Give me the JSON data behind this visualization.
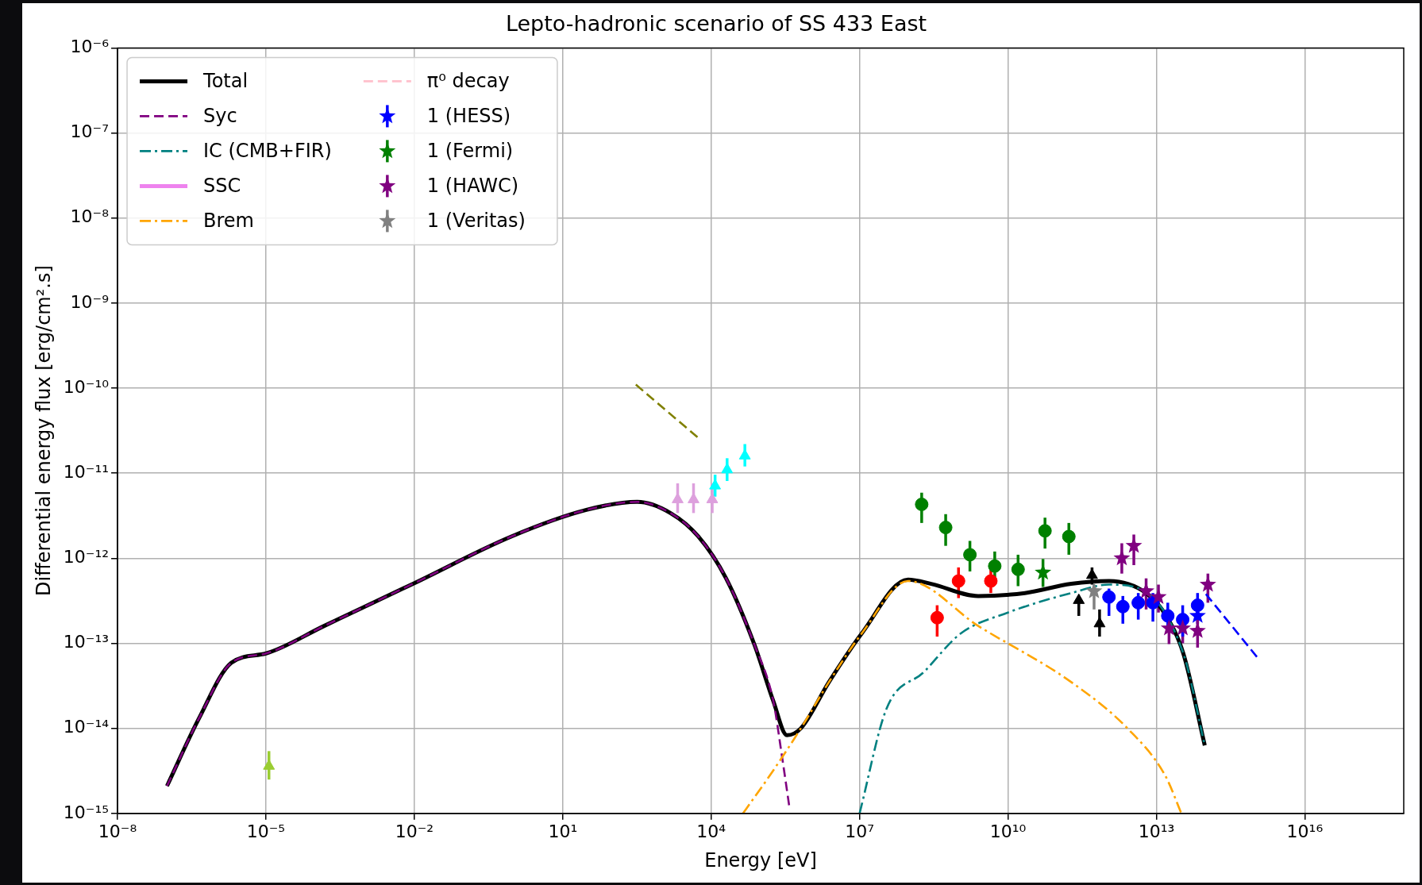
{
  "chart_data": {
    "type": "line",
    "title": "Lepto-hadronic scenario of SS 433 East",
    "xlabel": "Energy [eV]",
    "ylabel": "Differential energy flux [erg/cm².s]",
    "log": "xy",
    "grid": true,
    "legend": "top left",
    "xlim": [
      1e-08,
      1e+18
    ],
    "xticks": [
      {
        "value": 1e-08,
        "label": "10⁻⁸"
      },
      {
        "value": 1e-05,
        "label": "10⁻⁵"
      },
      {
        "value": 0.01,
        "label": "10⁻²"
      },
      {
        "value": 10,
        "label": "10¹"
      },
      {
        "value": 10000.0,
        "label": "10⁴"
      },
      {
        "value": 10000000.0,
        "label": "10⁷"
      },
      {
        "value": 10000000000.0,
        "label": "10¹⁰"
      },
      {
        "value": 10000000000000.0,
        "label": "10¹³"
      },
      {
        "value": 1e+16,
        "label": "10¹⁶"
      }
    ],
    "ylim": [
      1e-15,
      1e-06
    ],
    "yticks": [
      {
        "value": 1e-15,
        "label": "10⁻¹⁵"
      },
      {
        "value": 1e-14,
        "label": "10⁻¹⁴"
      },
      {
        "value": 1e-13,
        "label": "10⁻¹³"
      },
      {
        "value": 1e-12,
        "label": "10⁻¹²"
      },
      {
        "value": 1e-11,
        "label": "10⁻¹¹"
      },
      {
        "value": 1e-10,
        "label": "10⁻¹⁰"
      },
      {
        "value": 1e-09,
        "label": "10⁻⁹"
      },
      {
        "value": 1e-08,
        "label": "10⁻⁸"
      },
      {
        "value": 1e-07,
        "label": "10⁻⁷"
      },
      {
        "value": 1e-06,
        "label": "10⁻⁶"
      }
    ],
    "series": [
      {
        "name": "Total",
        "line_style": "solid",
        "color": "#000000",
        "x": [
          1e-07,
          4.4e-07,
          2e-06,
          1e-05,
          0.00015,
          0.01,
          0.91,
          30,
          320,
          1500,
          5500,
          20000.0,
          74000.0,
          180000.0,
          340000.0,
          650000.0,
          2400000.0,
          11000000.0,
          95000000.0,
          280000000.0,
          2500000000.0,
          22000000000.0,
          190000000000.0,
          1100000000000.0,
          6200000000000.0,
          15000000000000.0,
          35000000000000.0,
          95000000000000.0
        ],
        "values": [
          2.1e-15,
          1.3e-14,
          5.9e-14,
          7.6e-14,
          1.6e-13,
          5.1e-13,
          1.8e-12,
          3.7e-12,
          4.6e-12,
          3.4e-12,
          1.8e-12,
          5.8e-13,
          9.8e-14,
          2.1e-14,
          8.3e-15,
          1e-14,
          3.5e-14,
          1.3e-13,
          5.6e-13,
          5e-13,
          3.6e-13,
          3.9e-13,
          5e-13,
          5.4e-13,
          3.9e-13,
          2.2e-13,
          7.6e-14,
          6.3e-15
        ]
      },
      {
        "name": "Syc",
        "line_style": "dashed",
        "color": "#800080",
        "x": [
          1e-07,
          4.4e-07,
          2e-06,
          1e-05,
          0.00015,
          0.01,
          0.91,
          30,
          320,
          1500,
          5500,
          20000.0,
          74000.0,
          180000.0,
          270000.0,
          380000.0
        ],
        "values": [
          2.1e-15,
          1.3e-14,
          5.9e-14,
          7.6e-14,
          1.6e-13,
          5.1e-13,
          1.8e-12,
          3.7e-12,
          4.6e-12,
          3.4e-12,
          1.8e-12,
          5.8e-13,
          9.8e-14,
          2.1e-14,
          4.7e-15,
          1.2e-15
        ]
      },
      {
        "name": "IC (CMB+FIR)",
        "line_style": "dashdot",
        "color": "#008080",
        "x": [
          10000000.0,
          35000000.0,
          200000000.0,
          1100000000.0,
          10000000000.0,
          190000000000.0,
          1100000000000.0,
          4500000000000.0,
          35000000000000.0,
          95000000000000.0
        ],
        "values": [
          1e-15,
          1.7e-14,
          4.6e-14,
          1.3e-13,
          2.3e-13,
          3.9e-13,
          4.9e-13,
          4.4e-13,
          7.6e-14,
          6.3e-15
        ]
      },
      {
        "name": "SSC",
        "line_style": "solid",
        "color": "#ee82ee"
      },
      {
        "name": "Brem",
        "line_style": "dashdot",
        "color": "#ffa500",
        "x": [
          44000.0,
          180000.0,
          650000.0,
          2400000.0,
          11000000.0,
          95000000.0,
          2500000000.0,
          190000000000.0,
          2600000000000.0,
          15000000000000.0,
          32000000000000.0
        ],
        "values": [
          1e-15,
          3.2e-15,
          1e-14,
          3.5e-14,
          1.3e-13,
          5.4e-13,
          1.6e-13,
          3.5e-14,
          1e-14,
          2.8e-15,
          1e-15
        ]
      },
      {
        "name": "π⁰ decay",
        "line_style": "dashed",
        "color": "#ffc0cb"
      },
      {
        "name": "1 (HESS)",
        "type": "scatter",
        "marker": "star",
        "color": "#0000ff",
        "x": [
          68000000000000.0
        ],
        "values": [
          2.1e-13
        ],
        "errors": [
          [
            1.7e-13,
            2.6e-13
          ]
        ]
      },
      {
        "name": "1 (Fermi)",
        "type": "scatter",
        "marker": "star",
        "color": "#008000",
        "x": [
          51000000000.0
        ],
        "values": [
          6.8e-13
        ],
        "errors": [
          [
            4.6e-13,
            9.8e-13
          ]
        ]
      },
      {
        "name": "1 (HAWC)",
        "type": "scatter",
        "marker": "star",
        "color": "#800080",
        "x": [
          2000000000000.0,
          3500000000000.0,
          6200000000000.0,
          11000000000000.0,
          18000000000000.0,
          34000000000000.0,
          68000000000000.0,
          110000000000000.0
        ],
        "values": [
          1e-12,
          1.4e-12,
          4.1e-13,
          3.5e-13,
          1.5e-13,
          1.5e-13,
          1.4e-13,
          4.9e-13
        ],
        "errors": [
          [
            6.6e-13,
            1.5e-12
          ],
          [
            8.3e-13,
            1.9e-12
          ],
          [
            2.5e-13,
            5.8e-13
          ],
          [
            2.3e-13,
            4.9e-13
          ],
          [
            9.8e-14,
            2.5e-13
          ],
          [
            1e-13,
            2.1e-13
          ],
          [
            8.9e-14,
            1.9e-13
          ],
          [
            3e-13,
            6.6e-13
          ]
        ]
      },
      {
        "name": "1 (Veritas)",
        "type": "scatter",
        "marker": "star",
        "color": "#808080",
        "x": [
          550000000000.0
        ],
        "values": [
          4.1e-13
        ],
        "errors": [
          [
            2.5e-13,
            4.9e-13
          ]
        ]
      },
      {
        "line_style": "dashed",
        "color": "#808000",
        "x": [
          300,
          5500
        ],
        "values": [
          1.1e-10,
          2.6e-11
        ]
      },
      {
        "line_style": "dashed",
        "color": "#0000ff",
        "x": [
          100000000000000.0,
          1150000000000000.0
        ],
        "values": [
          3.8e-13,
          6.6e-14
        ]
      },
      {
        "type": "scatter",
        "marker": "triangle",
        "color": "#9acd32",
        "x": [
          1.15e-05
        ],
        "values": [
          3.6e-15
        ],
        "errors": [
          [
            2.5e-15,
            5.4e-15
          ]
        ]
      },
      {
        "type": "scatter",
        "marker": "triangle",
        "color": "#dda0dd",
        "x": [
          2100,
          4400,
          10500.0
        ],
        "values": [
          4.9e-12,
          4.9e-12,
          4.9e-12
        ],
        "errors": [
          [
            3.4e-12,
            7.6e-12
          ],
          [
            3.4e-12,
            7.6e-12
          ],
          [
            3.4e-12,
            7.6e-12
          ]
        ]
      },
      {
        "type": "scatter",
        "marker": "triangle",
        "color": "#00ffff",
        "x": [
          12000.0,
          21000.0,
          48000.0
        ],
        "values": [
          7.1e-12,
          1.1e-11,
          1.6e-11
        ],
        "errors": [
          [
            5.3e-12,
            9.6e-12
          ],
          [
            8.1e-12,
            1.5e-11
          ],
          [
            1.2e-11,
            2.2e-11
          ]
        ]
      },
      {
        "type": "scatter",
        "marker": "circle",
        "color": "#008000",
        "x": [
          180000000.0,
          550000000.0,
          1700000000.0,
          5400000000.0,
          16000000000.0,
          56000000000.0,
          170000000000.0
        ],
        "values": [
          4.3e-12,
          2.3e-12,
          1.1e-12,
          8.1e-13,
          7.4e-13,
          2.1e-12,
          1.8e-12
        ],
        "errors": [
          [
            2.6e-12,
            5.9e-12
          ],
          [
            1.4e-12,
            3.3e-12
          ],
          [
            7e-13,
            1.6e-12
          ],
          [
            5.9e-13,
            1.2e-12
          ],
          [
            4.7e-13,
            1.1e-12
          ],
          [
            1.3e-12,
            3e-12
          ],
          [
            1.1e-12,
            2.6e-12
          ]
        ]
      },
      {
        "type": "scatter",
        "marker": "circle",
        "color": "#ff0000",
        "x": [
          1000000000.0,
          4500000000.0,
          370000000.0
        ],
        "values": [
          5.4e-13,
          5.4e-13,
          2e-13
        ],
        "errors": [
          [
            3.4e-13,
            7.8e-13
          ],
          [
            3.9e-13,
            7.6e-13
          ],
          [
            1.2e-13,
            2.8e-13
          ]
        ]
      },
      {
        "type": "scatter",
        "marker": "triangle",
        "color": "#000000",
        "x": [
          270000000000.0,
          710000000000.0,
          500000000000.0
        ],
        "values": [
          3.2e-13,
          1.7e-13,
          6.3e-13
        ],
        "errors": [
          [
            2.1e-13,
            3.6e-13
          ],
          [
            1.2e-13,
            2.5e-13
          ],
          [
            4.9e-13,
            7.8e-13
          ]
        ]
      },
      {
        "type": "scatter",
        "marker": "circle",
        "color": "#0000ff",
        "x": [
          1100000000000.0,
          2100000000000.0,
          4300000000000.0,
          8500000000000.0,
          17000000000000.0,
          34000000000000.0,
          68000000000000.0
        ],
        "values": [
          3.5e-13,
          2.7e-13,
          3e-13,
          3e-13,
          2.1e-13,
          1.9e-13,
          2.8e-13
        ],
        "errors": [
          [
            2.1e-13,
            4.4e-13
          ],
          [
            1.7e-13,
            3.6e-13
          ],
          [
            1.9e-13,
            3.9e-13
          ],
          [
            1.8e-13,
            3.9e-13
          ],
          [
            1.4e-13,
            3e-13
          ],
          [
            1.2e-13,
            2.8e-13
          ],
          [
            1.9e-13,
            3.9e-13
          ]
        ]
      }
    ]
  }
}
